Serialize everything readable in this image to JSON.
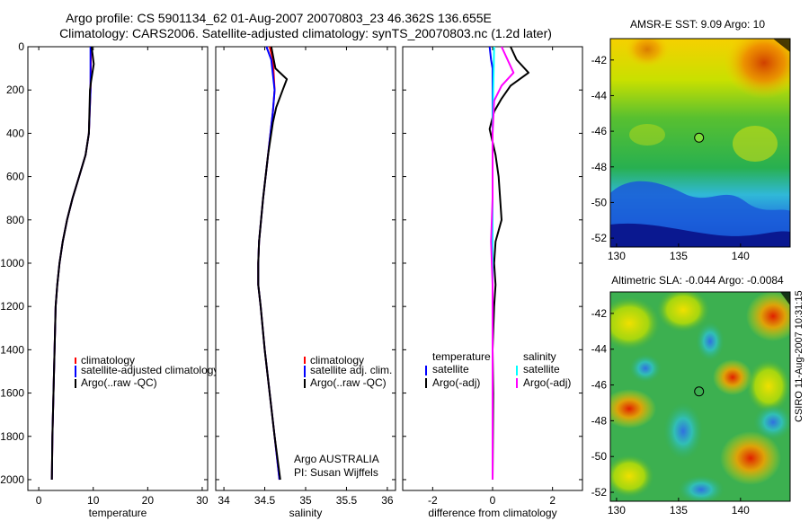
{
  "titles": {
    "line1": "Argo profile: CS 5901134_62 01-Aug-2007 20070803_23 46.362S 136.655E",
    "line2": "Climatology: CARS2006. Satellite-adjusted climatology: synTS_20070803.nc (1.2d later)"
  },
  "colors": {
    "climatology": "#ff0000",
    "satellite": "#0000ff",
    "argo": "#000000",
    "salinity_satellite": "#00ffff",
    "salinity_argo": "#ff00ff"
  },
  "chart_data": [
    {
      "type": "line",
      "id": "temperature",
      "xlabel": "temperature",
      "ylabel": "",
      "xlim": [
        -2,
        31
      ],
      "ylim": [
        2050,
        0
      ],
      "x_ticks": [
        0,
        10,
        20,
        30
      ],
      "y_ticks": [
        0,
        200,
        400,
        600,
        800,
        1000,
        1200,
        1400,
        1600,
        1800,
        2000
      ],
      "legend": [
        "climatology",
        "satellite-adjusted climatology",
        "Argo(..raw -QC)"
      ],
      "series": [
        {
          "name": "climatology",
          "color": "#ff0000",
          "points": [
            [
              9.6,
              0
            ],
            [
              9.5,
              200
            ],
            [
              9.2,
              400
            ],
            [
              8.6,
              500
            ],
            [
              7.4,
              600
            ],
            [
              6.2,
              700
            ],
            [
              5.2,
              800
            ],
            [
              4.4,
              900
            ],
            [
              3.8,
              1000
            ],
            [
              3.4,
              1100
            ],
            [
              3.1,
              1200
            ],
            [
              2.9,
              1400
            ],
            [
              2.7,
              1600
            ],
            [
              2.5,
              1800
            ],
            [
              2.4,
              2000
            ]
          ]
        },
        {
          "name": "satellite-adjusted climatology",
          "color": "#0000ff",
          "points": [
            [
              9.5,
              0
            ],
            [
              9.5,
              200
            ],
            [
              9.2,
              400
            ],
            [
              8.6,
              500
            ],
            [
              7.4,
              600
            ],
            [
              6.2,
              700
            ],
            [
              5.2,
              800
            ],
            [
              4.4,
              900
            ],
            [
              3.8,
              1000
            ],
            [
              3.4,
              1100
            ],
            [
              3.1,
              1200
            ],
            [
              2.9,
              1400
            ],
            [
              2.7,
              1600
            ],
            [
              2.5,
              1800
            ],
            [
              2.4,
              2000
            ]
          ]
        },
        {
          "name": "Argo(..raw -QC)",
          "color": "#000000",
          "points": [
            [
              9.7,
              0
            ],
            [
              10.1,
              80
            ],
            [
              9.6,
              160
            ],
            [
              9.4,
              200
            ],
            [
              9.2,
              400
            ],
            [
              8.6,
              500
            ],
            [
              7.4,
              600
            ],
            [
              6.2,
              700
            ],
            [
              5.2,
              800
            ],
            [
              4.4,
              900
            ],
            [
              3.8,
              1000
            ],
            [
              3.4,
              1100
            ],
            [
              3.1,
              1200
            ],
            [
              2.9,
              1400
            ],
            [
              2.7,
              1600
            ],
            [
              2.5,
              1800
            ],
            [
              2.4,
              2000
            ]
          ]
        }
      ]
    },
    {
      "type": "line",
      "id": "salinity",
      "xlabel": "salinity",
      "ylabel": "",
      "xlim": [
        33.9,
        36.1
      ],
      "ylim": [
        2050,
        0
      ],
      "x_ticks": [
        34,
        34.5,
        35,
        35.5,
        36
      ],
      "legend": [
        "climatology",
        "satellite adj. clim.",
        "Argo(..raw -QC)"
      ],
      "annotations": [
        "Argo AUSTRALIA",
        "PI: Susan Wijffels"
      ],
      "series": [
        {
          "name": "climatology",
          "color": "#ff0000",
          "points": [
            [
              34.56,
              0
            ],
            [
              34.6,
              60
            ],
            [
              34.62,
              200
            ],
            [
              34.6,
              300
            ],
            [
              34.54,
              500
            ],
            [
              34.48,
              700
            ],
            [
              34.43,
              900
            ],
            [
              34.42,
              1000
            ],
            [
              34.42,
              1100
            ],
            [
              34.45,
              1200
            ],
            [
              34.5,
              1400
            ],
            [
              34.56,
              1600
            ],
            [
              34.62,
              1800
            ],
            [
              34.68,
              2000
            ]
          ]
        },
        {
          "name": "satellite adj. clim.",
          "color": "#0000ff",
          "points": [
            [
              34.52,
              0
            ],
            [
              34.58,
              60
            ],
            [
              34.62,
              200
            ],
            [
              34.6,
              300
            ],
            [
              34.54,
              500
            ],
            [
              34.48,
              700
            ],
            [
              34.43,
              900
            ],
            [
              34.42,
              1000
            ],
            [
              34.42,
              1100
            ],
            [
              34.45,
              1200
            ],
            [
              34.5,
              1400
            ],
            [
              34.56,
              1600
            ],
            [
              34.62,
              1800
            ],
            [
              34.68,
              2000
            ]
          ]
        },
        {
          "name": "Argo(..raw -QC)",
          "color": "#000000",
          "points": [
            [
              34.58,
              0
            ],
            [
              34.63,
              100
            ],
            [
              34.77,
              150
            ],
            [
              34.72,
              200
            ],
            [
              34.64,
              280
            ],
            [
              34.6,
              350
            ],
            [
              34.54,
              500
            ],
            [
              34.48,
              700
            ],
            [
              34.43,
              900
            ],
            [
              34.42,
              1000
            ],
            [
              34.42,
              1100
            ],
            [
              34.45,
              1200
            ],
            [
              34.5,
              1400
            ],
            [
              34.56,
              1600
            ],
            [
              34.62,
              1800
            ],
            [
              34.69,
              2000
            ]
          ]
        }
      ]
    },
    {
      "type": "line",
      "id": "difference",
      "xlabel": "difference from climatology",
      "ylabel": "",
      "xlim": [
        -3,
        3
      ],
      "ylim": [
        2050,
        0
      ],
      "x_ticks": [
        -2,
        0,
        2
      ],
      "legend": [
        "temperature",
        "satellite",
        "Argo(-adj)",
        "salinity",
        "satellite",
        "Argo(-adj)"
      ],
      "series": [
        {
          "name": "satellite",
          "quantity": "temperature",
          "color": "#0000ff",
          "points": [
            [
              -0.1,
              0
            ],
            [
              -0.05,
              60
            ],
            [
              0,
              100
            ],
            [
              0,
              2000
            ]
          ]
        },
        {
          "name": "Argo(-adj)",
          "quantity": "temperature",
          "color": "#000000",
          "points": [
            [
              0.6,
              0
            ],
            [
              0.8,
              60
            ],
            [
              1.2,
              120
            ],
            [
              0.6,
              180
            ],
            [
              0.3,
              240
            ],
            [
              0.05,
              300
            ],
            [
              -0.1,
              380
            ],
            [
              0.1,
              500
            ],
            [
              0.2,
              600
            ],
            [
              0.3,
              800
            ],
            [
              0.1,
              900
            ],
            [
              0.05,
              1000
            ],
            [
              0.1,
              1100
            ],
            [
              0.05,
              1200
            ],
            [
              0,
              1400
            ],
            [
              0.02,
              1600
            ],
            [
              0,
              2000
            ]
          ]
        },
        {
          "name": "satellite",
          "quantity": "salinity",
          "color": "#00ffff",
          "points": [
            [
              0.05,
              0
            ],
            [
              0.02,
              200
            ],
            [
              0,
              400
            ],
            [
              0,
              2000
            ]
          ]
        },
        {
          "name": "Argo(-adj)",
          "quantity": "salinity",
          "color": "#ff00ff",
          "points": [
            [
              0.3,
              0
            ],
            [
              0.7,
              120
            ],
            [
              0.3,
              180
            ],
            [
              0.05,
              250
            ],
            [
              0,
              400
            ],
            [
              0,
              700
            ],
            [
              -0.05,
              900
            ],
            [
              0,
              1100
            ],
            [
              0,
              2000
            ]
          ]
        }
      ]
    },
    {
      "type": "heatmap",
      "id": "sst_map",
      "title": "AMSR-E SST: 9.09 Argo: 10",
      "xlim": [
        129.5,
        144
      ],
      "ylim": [
        -52.5,
        -40.8
      ],
      "x_ticks": [
        130,
        135,
        140
      ],
      "y_ticks": [
        -42,
        -44,
        -46,
        -48,
        -50,
        -52
      ],
      "marker": {
        "lon": 136.655,
        "lat": -46.362
      }
    },
    {
      "type": "heatmap",
      "id": "sla_map",
      "title": "Altimetric SLA: -0.044 Argo: -0.0084",
      "xlim": [
        129.5,
        144
      ],
      "ylim": [
        -52.5,
        -40.8
      ],
      "x_ticks": [
        130,
        135,
        140
      ],
      "y_ticks": [
        -42,
        -44,
        -46,
        -48,
        -50,
        -52
      ],
      "marker": {
        "lon": 136.655,
        "lat": -46.362
      }
    }
  ],
  "side_note": "CSIRO 11-Aug-2007 10:31:15"
}
